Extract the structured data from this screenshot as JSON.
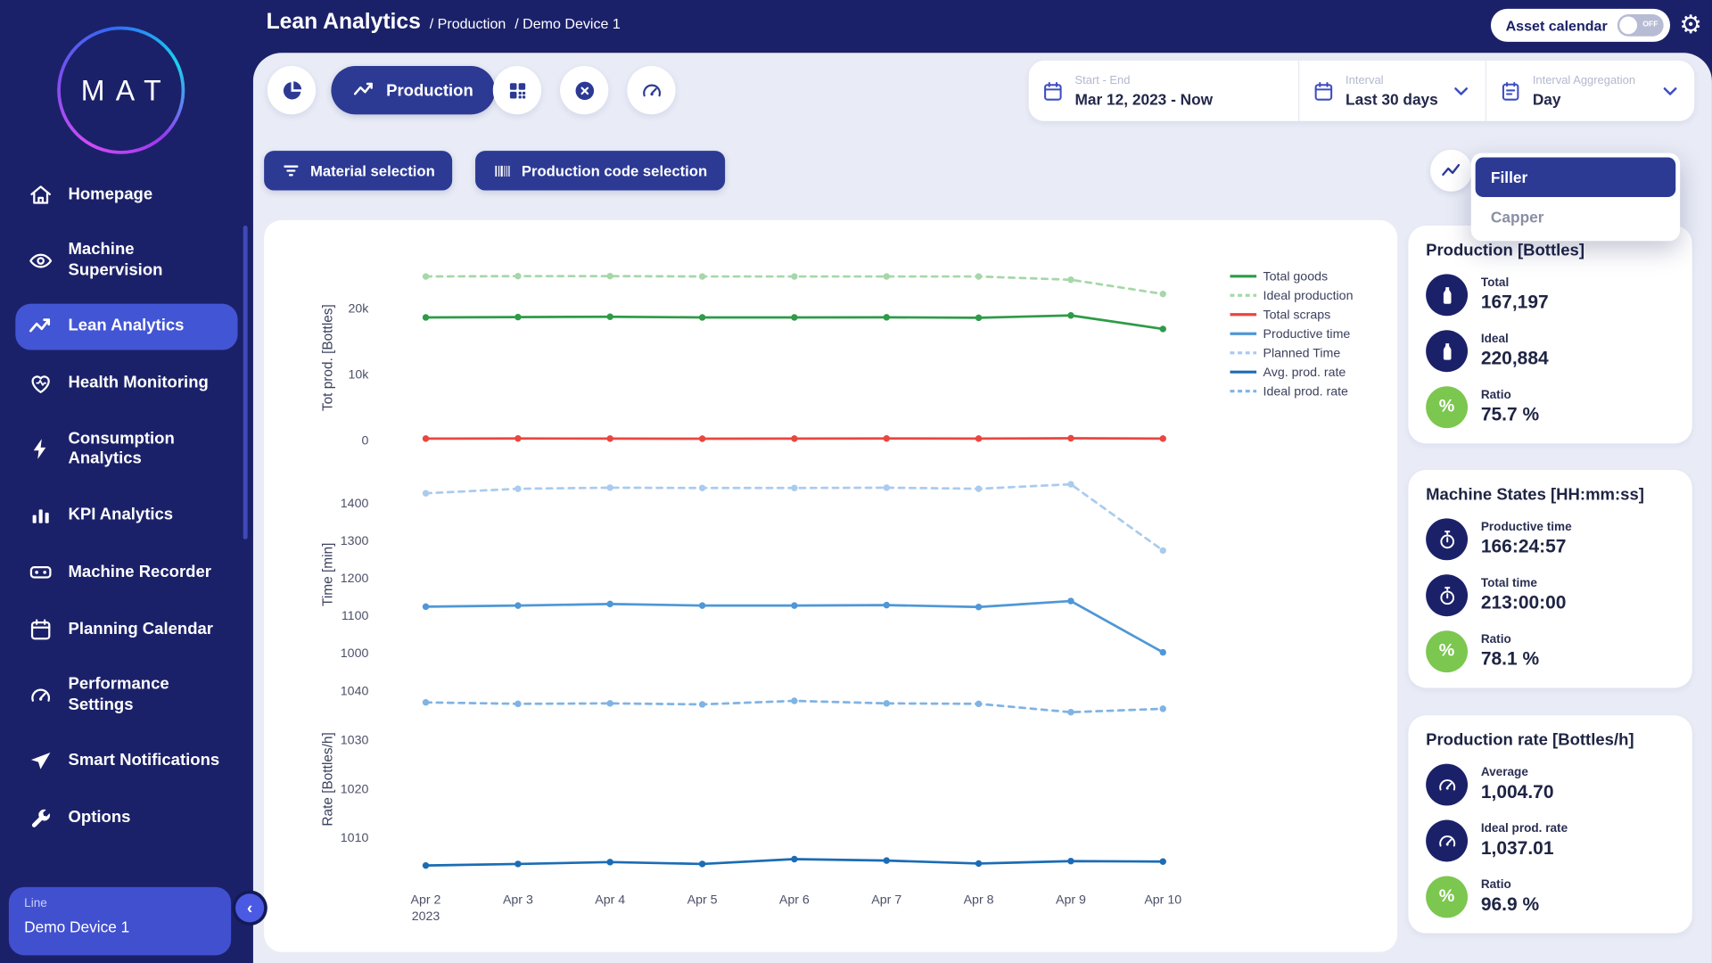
{
  "header": {
    "title": "Lean Analytics",
    "breadcrumbs": [
      "/ Production",
      "/ Demo Device 1"
    ],
    "asset_calendar_label": "Asset calendar",
    "asset_calendar_state": "OFF"
  },
  "sidebar": {
    "logo": "MAT",
    "items": [
      {
        "label": "Homepage"
      },
      {
        "label": "Machine Supervision"
      },
      {
        "label": "Lean Analytics"
      },
      {
        "label": "Health Monitoring"
      },
      {
        "label": "Consumption Analytics"
      },
      {
        "label": "KPI Analytics"
      },
      {
        "label": "Machine Recorder"
      },
      {
        "label": "Planning Calendar"
      },
      {
        "label": "Performance Settings"
      },
      {
        "label": "Smart Notifications"
      },
      {
        "label": "Options"
      }
    ],
    "line_selector": {
      "label": "Line",
      "value": "Demo Device 1"
    }
  },
  "toolbar": {
    "production_tab": "Production",
    "filters": {
      "start_end": {
        "label": "Start - End",
        "value": "Mar 12, 2023 - Now"
      },
      "interval": {
        "label": "Interval",
        "value": "Last 30 days"
      },
      "aggregation": {
        "label": "Interval Aggregation",
        "value": "Day"
      }
    },
    "material_button": "Material selection",
    "production_code_button": "Production code selection"
  },
  "machine_dropdown": {
    "options": [
      "Filler",
      "Capper"
    ],
    "selected": "Filler"
  },
  "stat_cards": [
    {
      "title": "Production [Bottles]",
      "rows": [
        {
          "icon": "bottle",
          "label": "Total",
          "value": "167,197"
        },
        {
          "icon": "bottle",
          "label": "Ideal",
          "value": "220,884"
        },
        {
          "icon": "percent",
          "label": "Ratio",
          "value": "75.7 %"
        }
      ]
    },
    {
      "title": "Machine States [HH:mm:ss]",
      "rows": [
        {
          "icon": "stopwatch",
          "label": "Productive time",
          "value": "166:24:57"
        },
        {
          "icon": "stopwatch",
          "label": "Total time",
          "value": "213:00:00"
        },
        {
          "icon": "percent",
          "label": "Ratio",
          "value": "78.1 %"
        }
      ]
    },
    {
      "title": "Production rate [Bottles/h]",
      "rows": [
        {
          "icon": "speed",
          "label": "Average",
          "value": "1,004.70"
        },
        {
          "icon": "speed",
          "label": "Ideal prod. rate",
          "value": "1,037.01"
        },
        {
          "icon": "percent",
          "label": "Ratio",
          "value": "96.9 %"
        }
      ]
    }
  ],
  "chart_data": {
    "type": "line",
    "categories": [
      "Apr 2",
      "Apr 3",
      "Apr 4",
      "Apr 5",
      "Apr 6",
      "Apr 7",
      "Apr 8",
      "Apr 9",
      "Apr 10"
    ],
    "year_label": "2023",
    "subplots": [
      {
        "ylabel": "Tot prod. [Bottles]",
        "ylim": [
          0,
          26000
        ],
        "yticks": [
          {
            "v": 0,
            "label": "0"
          },
          {
            "v": 10000,
            "label": "10k"
          },
          {
            "v": 20000,
            "label": "20k"
          }
        ],
        "series": [
          {
            "name": "Total goods",
            "color": "#2e9b48",
            "dash": false,
            "values": [
              18600,
              18650,
              18700,
              18600,
              18600,
              18620,
              18550,
              18900,
              16850
            ]
          },
          {
            "name": "Ideal production",
            "color": "#a6d7a9",
            "dash": true,
            "values": [
              24800,
              24850,
              24850,
              24800,
              24800,
              24800,
              24800,
              24300,
              22150
            ]
          },
          {
            "name": "Total scraps",
            "color": "#e8473f",
            "dash": false,
            "values": [
              250,
              260,
              250,
              240,
              250,
              260,
              250,
              300,
              250
            ]
          }
        ]
      },
      {
        "ylabel": "Time [min]",
        "ylim": [
          1000,
          1460
        ],
        "yticks": [
          {
            "v": 1000,
            "label": "1000"
          },
          {
            "v": 1100,
            "label": "1100"
          },
          {
            "v": 1200,
            "label": "1200"
          },
          {
            "v": 1300,
            "label": "1300"
          },
          {
            "v": 1400,
            "label": "1400"
          }
        ],
        "series": [
          {
            "name": "Productive time",
            "color": "#4f97d6",
            "dash": false,
            "values": [
              1123,
              1126,
              1130,
              1126,
              1126,
              1127,
              1122,
              1138,
              1001
            ]
          },
          {
            "name": "Planned Time",
            "color": "#aacbee",
            "dash": true,
            "values": [
              1426,
              1438,
              1441,
              1440,
              1440,
              1441,
              1438,
              1450,
              1273
            ]
          }
        ]
      },
      {
        "ylabel": "Rate [Bottles/h]",
        "ylim": [
          1003,
          1040
        ],
        "yticks": [
          {
            "v": 1010,
            "label": "1010"
          },
          {
            "v": 1020,
            "label": "1020"
          },
          {
            "v": 1030,
            "label": "1030"
          },
          {
            "v": 1040,
            "label": "1040"
          }
        ],
        "series": [
          {
            "name": "Avg. prod. rate",
            "color": "#1b6cb5",
            "dash": false,
            "values": [
              1004.3,
              1004.6,
              1005.0,
              1004.6,
              1005.6,
              1005.3,
              1004.7,
              1005.2,
              1005.1
            ]
          },
          {
            "name": "Ideal prod. rate",
            "color": "#7fb3e4",
            "dash": true,
            "values": [
              1037.6,
              1037.3,
              1037.4,
              1037.2,
              1037.9,
              1037.4,
              1037.3,
              1035.6,
              1036.3
            ]
          }
        ]
      }
    ],
    "legend": [
      {
        "label": "Total goods",
        "color": "#2e9b48",
        "dash": false
      },
      {
        "label": "Ideal production",
        "color": "#a6d7a9",
        "dash": true
      },
      {
        "label": "Total scraps",
        "color": "#e8473f",
        "dash": false
      },
      {
        "label": "Productive time",
        "color": "#4f97d6",
        "dash": false
      },
      {
        "label": "Planned Time",
        "color": "#aacbee",
        "dash": true
      },
      {
        "label": "Avg. prod. rate",
        "color": "#1b6cb5",
        "dash": false
      },
      {
        "label": "Ideal prod. rate",
        "color": "#7fb3e4",
        "dash": true
      }
    ],
    "legend_position": "top-right",
    "grid": false
  }
}
